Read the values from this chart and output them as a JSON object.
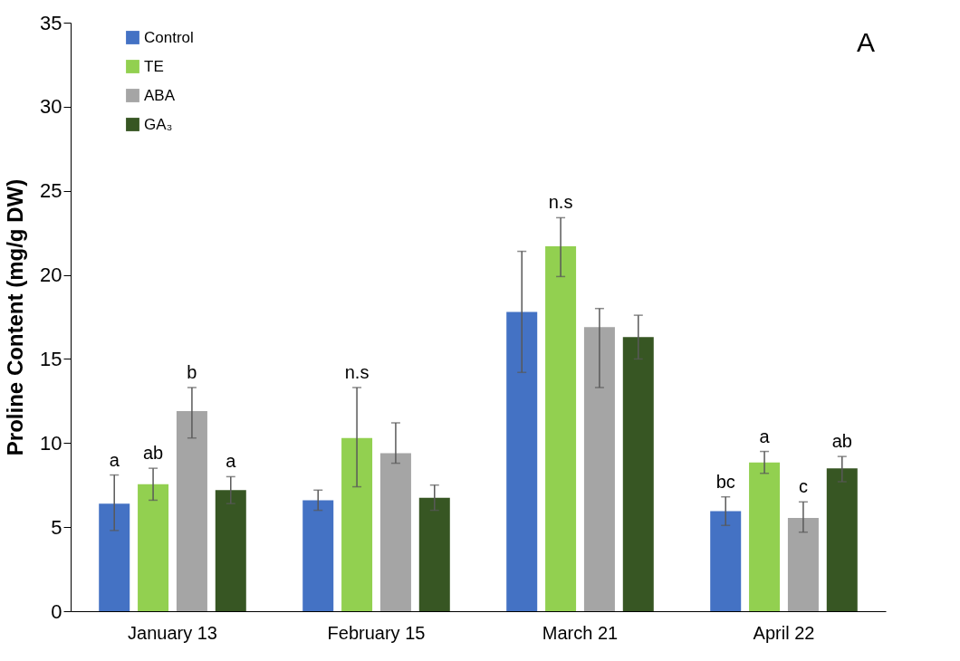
{
  "chart_data": {
    "type": "bar",
    "ylabel": "Proline Content (mg/g DW)",
    "categories": [
      "January 13",
      "February 15",
      "March 21",
      "April 22"
    ],
    "series": [
      {
        "name": "Control",
        "color": "#4472c4",
        "values": [
          6.4,
          6.6,
          17.8,
          5.95
        ],
        "errors": [
          [
            4.8,
            8.1
          ],
          [
            6.0,
            7.2
          ],
          [
            14.2,
            21.4
          ],
          [
            5.1,
            6.8
          ]
        ],
        "value_labels": [
          "a",
          null,
          null,
          "bc"
        ]
      },
      {
        "name": "TE",
        "color": "#92d050",
        "values": [
          7.55,
          10.3,
          21.7,
          8.85
        ],
        "errors": [
          [
            6.6,
            8.5
          ],
          [
            7.4,
            13.3
          ],
          [
            19.9,
            23.4
          ],
          [
            8.2,
            9.5
          ]
        ],
        "value_labels": [
          "ab",
          "n.s",
          "n.s",
          "a"
        ]
      },
      {
        "name": "ABA",
        "color": "#a5a5a5",
        "values": [
          11.9,
          9.4,
          16.9,
          5.55
        ],
        "errors": [
          [
            10.3,
            13.3
          ],
          [
            8.8,
            11.2
          ],
          [
            13.3,
            18.0
          ],
          [
            4.7,
            6.5
          ]
        ],
        "value_labels": [
          "b",
          null,
          null,
          "c"
        ]
      },
      {
        "name": "GA₃",
        "color": "#375623",
        "values": [
          7.2,
          6.75,
          16.3,
          8.5
        ],
        "errors": [
          [
            6.4,
            8.0
          ],
          [
            6.0,
            7.5
          ],
          [
            15.0,
            17.6
          ],
          [
            7.7,
            9.2
          ]
        ],
        "value_labels": [
          "a",
          null,
          null,
          "ab"
        ]
      }
    ],
    "ylim": [
      0,
      35
    ],
    "yticks": [
      0,
      5,
      10,
      15,
      20,
      25,
      30,
      35
    ],
    "grid": false,
    "legend": "top left",
    "annotations": [
      "A"
    ]
  }
}
